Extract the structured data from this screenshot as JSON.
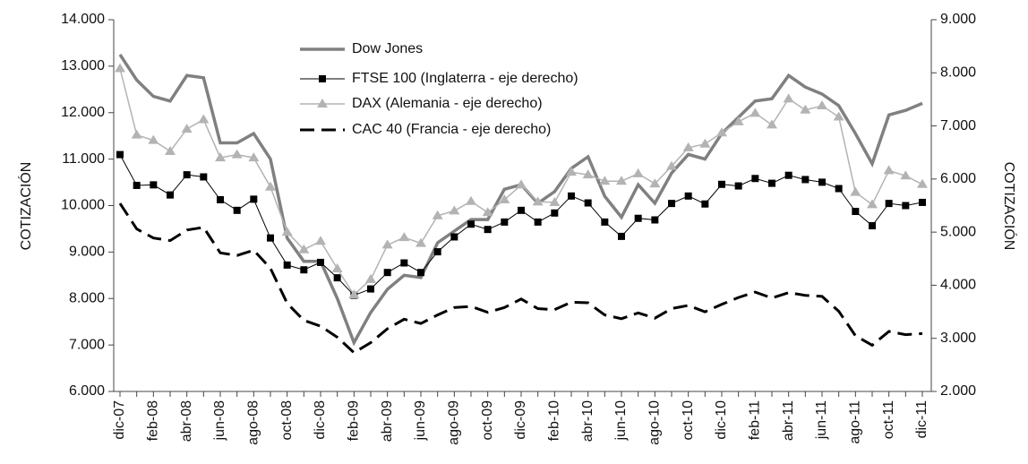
{
  "chart_data": {
    "type": "line",
    "ylabel": "COTIZACIÓN",
    "y2label": "COTIZACIÓN",
    "categories": [
      "dic-07",
      null,
      "feb-08",
      null,
      "abr-08",
      null,
      "jun-08",
      null,
      "ago-08",
      null,
      "oct-08",
      null,
      "dic-08",
      null,
      "feb-09",
      null,
      "abr-09",
      null,
      "jun-09",
      null,
      "ago-09",
      null,
      "oct-09",
      null,
      "dic-09",
      null,
      "feb-10",
      null,
      "abr-10",
      null,
      "jun-10",
      null,
      "ago-10",
      null,
      "oct-10",
      null,
      "dic-10",
      null,
      "feb-11",
      null,
      "abr-11",
      null,
      "jun-11",
      null,
      "ago-11",
      null,
      "oct-11",
      null,
      "dic-11"
    ],
    "ylim": [
      6000,
      14000
    ],
    "yticks": [
      {
        "value": 6000,
        "label": "6.000"
      },
      {
        "value": 7000,
        "label": "7.000"
      },
      {
        "value": 8000,
        "label": "8.000"
      },
      {
        "value": 9000,
        "label": "9.000"
      },
      {
        "value": 10000,
        "label": "10.000"
      },
      {
        "value": 11000,
        "label": "11.000"
      },
      {
        "value": 12000,
        "label": "12.000"
      },
      {
        "value": 13000,
        "label": "13.000"
      },
      {
        "value": 14000,
        "label": "14.000"
      }
    ],
    "y2lim": [
      2000,
      9000
    ],
    "y2ticks": [
      {
        "value": 2000,
        "label": "2.000"
      },
      {
        "value": 3000,
        "label": "3.000"
      },
      {
        "value": 4000,
        "label": "4.000"
      },
      {
        "value": 5000,
        "label": "5.000"
      },
      {
        "value": 6000,
        "label": "6.000"
      },
      {
        "value": 7000,
        "label": "7.000"
      },
      {
        "value": 8000,
        "label": "8.000"
      },
      {
        "value": 9000,
        "label": "9.000"
      }
    ],
    "series": [
      {
        "name": "Dow Jones",
        "color": "#808080",
        "axis": "y",
        "marker": "none",
        "dashed": false,
        "values": [
          13250,
          12700,
          12350,
          12250,
          12800,
          12750,
          11350,
          11350,
          11550,
          11000,
          9300,
          8800,
          8800,
          8000,
          7050,
          7700,
          8200,
          8500,
          8450,
          9200,
          9450,
          9700,
          9700,
          10350,
          10450,
          10050,
          10300,
          10800,
          11050,
          10200,
          9750,
          10450,
          10050,
          10700,
          11100,
          11000,
          11550,
          11900,
          12250,
          12300,
          12800,
          12550,
          12400,
          12150,
          11550,
          10900,
          11950,
          12050,
          12200
        ]
      },
      {
        "name": "FTSE 100 (Inglaterra - eje derecho)",
        "color": "#000000",
        "axis": "y2",
        "marker": "square",
        "dashed": false,
        "values": [
          6460,
          5880,
          5890,
          5700,
          6080,
          6040,
          5610,
          5410,
          5620,
          4890,
          4380,
          4290,
          4430,
          4140,
          3810,
          3930,
          4240,
          4420,
          4240,
          4630,
          4910,
          5150,
          5050,
          5190,
          5410,
          5190,
          5360,
          5680,
          5550,
          5190,
          4920,
          5260,
          5230,
          5540,
          5680,
          5530,
          5900,
          5870,
          6010,
          5920,
          6070,
          5990,
          5940,
          5820,
          5390,
          5120,
          5540,
          5500,
          5560
        ]
      },
      {
        "name": "DAX (Alemania - eje derecho)",
        "color": "#b3b3b3",
        "axis": "y2",
        "marker": "triangle",
        "dashed": false,
        "values": [
          8080,
          6830,
          6730,
          6520,
          6940,
          7120,
          6400,
          6460,
          6400,
          5850,
          5000,
          4670,
          4830,
          4310,
          3820,
          4110,
          4760,
          4900,
          4790,
          5310,
          5400,
          5580,
          5370,
          5610,
          5890,
          5570,
          5560,
          6130,
          6080,
          5960,
          5960,
          6100,
          5910,
          6240,
          6590,
          6660,
          6870,
          7080,
          7240,
          7020,
          7510,
          7300,
          7380,
          7170,
          5750,
          5520,
          6160,
          6060,
          5900
        ]
      },
      {
        "name": "CAC 40 (Francia - eje derecho)",
        "color": "#000000",
        "axis": "y2",
        "marker": "none",
        "dashed": true,
        "values": [
          5540,
          5060,
          4890,
          4840,
          5040,
          5090,
          4610,
          4560,
          4660,
          4320,
          3660,
          3340,
          3230,
          3020,
          2730,
          2920,
          3180,
          3360,
          3280,
          3440,
          3580,
          3600,
          3490,
          3580,
          3740,
          3560,
          3540,
          3680,
          3670,
          3440,
          3370,
          3480,
          3380,
          3560,
          3620,
          3500,
          3640,
          3770,
          3870,
          3760,
          3860,
          3810,
          3790,
          3510,
          3050,
          2870,
          3130,
          3070,
          3090
        ]
      }
    ]
  }
}
